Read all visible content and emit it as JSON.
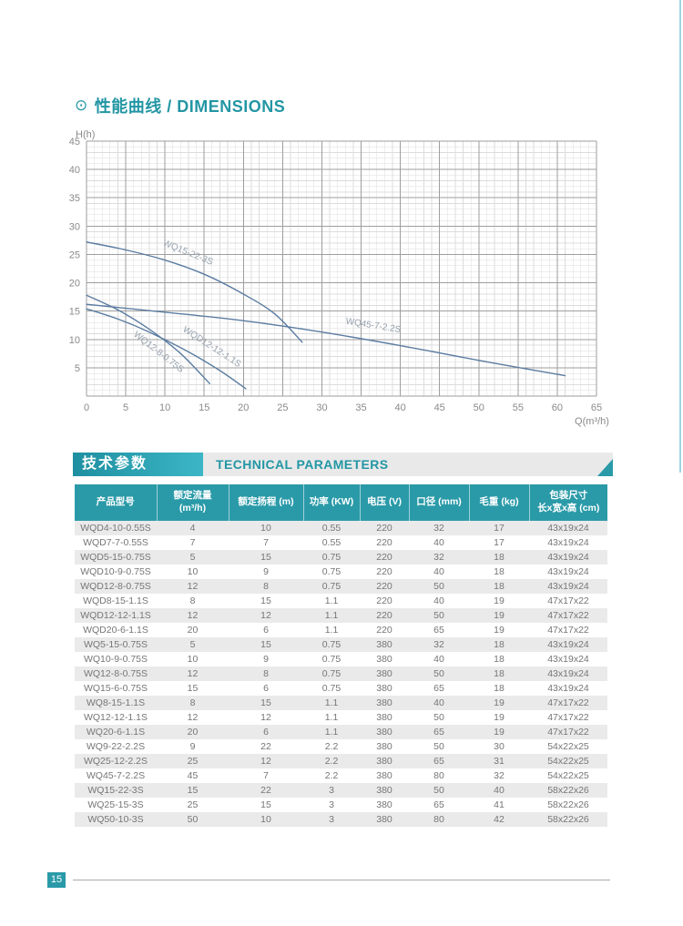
{
  "colors": {
    "accent_teal": "#2a9aa8",
    "teal_gradient_start": "#1e8fa0",
    "teal_gradient_end": "#3cb6c6",
    "curve": "#5b7ca1",
    "curve_label": "#96a1ad",
    "grid_major": "#9e9e9e",
    "grid_minor": "#dcdcdc",
    "tick_text": "#8a8a8a",
    "row_stripe": "#eaeaea",
    "edge_line": "#9fd3e3"
  },
  "dimensions": {
    "icon": "⊙",
    "title": "性能曲线 / DIMENSIONS"
  },
  "chart_data": {
    "type": "line",
    "title": "性能曲线 / DIMENSIONS",
    "xlabel": "Q(m³/h)",
    "ylabel": "H(h)",
    "xlim": [
      0,
      65
    ],
    "ylim": [
      0,
      45
    ],
    "x_ticks": [
      0,
      5,
      10,
      15,
      20,
      25,
      30,
      35,
      40,
      45,
      50,
      55,
      60,
      65
    ],
    "y_ticks": [
      5,
      10,
      15,
      20,
      25,
      30,
      35,
      40,
      45
    ],
    "grid": "major+minor",
    "legend_position": "labels-on-curves",
    "series": [
      {
        "name": "WQ15-22-3S",
        "points": [
          [
            0,
            27.2
          ],
          [
            5,
            25.8
          ],
          [
            10,
            24.0
          ],
          [
            15,
            21.5
          ],
          [
            20,
            18.0
          ],
          [
            24,
            14.5
          ],
          [
            27.5,
            9.5
          ]
        ],
        "label_pos": [
          12.8,
          24.9
        ],
        "label_angle": 22
      },
      {
        "name": "WQ12-8-0.75S",
        "points": [
          [
            0,
            17.8
          ],
          [
            4,
            15.2
          ],
          [
            8,
            11.8
          ],
          [
            12,
            7.5
          ],
          [
            15.7,
            2.2
          ]
        ],
        "label_pos": [
          9.0,
          7.4
        ],
        "label_angle": 38
      },
      {
        "name": "WQD12-12-1.1S",
        "points": [
          [
            0,
            15.4
          ],
          [
            4,
            13.6
          ],
          [
            8,
            11.3
          ],
          [
            13,
            7.8
          ],
          [
            17,
            4.5
          ],
          [
            20.3,
            1.3
          ]
        ],
        "label_pos": [
          15.8,
          8.3
        ],
        "label_angle": 33
      },
      {
        "name": "WQ45-7-2.2S",
        "points": [
          [
            0,
            16.2
          ],
          [
            10,
            14.8
          ],
          [
            20,
            13.3
          ],
          [
            30,
            11.3
          ],
          [
            40,
            8.9
          ],
          [
            50,
            6.3
          ],
          [
            61,
            3.6
          ]
        ],
        "label_pos": [
          36.5,
          12.0
        ],
        "label_angle": 9
      }
    ]
  },
  "technical": {
    "title_cn": "技术参数",
    "title_en": "TECHNICAL PARAMETERS"
  },
  "table": {
    "columns": [
      "产品型号",
      "额定流量\n(m³/h)",
      "额定扬程 (m)",
      "功率 (KW)",
      "电压 (V)",
      "口径 (mm)",
      "毛重 (kg)",
      "包装尺寸\n长x宽x高 (cm)"
    ],
    "rows": [
      [
        "WQD4-10-0.55S",
        "4",
        "10",
        "0.55",
        "220",
        "32",
        "17",
        "43x19x24"
      ],
      [
        "WQD7-7-0.55S",
        "7",
        "7",
        "0.55",
        "220",
        "40",
        "17",
        "43x19x24"
      ],
      [
        "WQD5-15-0.75S",
        "5",
        "15",
        "0.75",
        "220",
        "32",
        "18",
        "43x19x24"
      ],
      [
        "WQD10-9-0.75S",
        "10",
        "9",
        "0.75",
        "220",
        "40",
        "18",
        "43x19x24"
      ],
      [
        "WQD12-8-0.75S",
        "12",
        "8",
        "0.75",
        "220",
        "50",
        "18",
        "43x19x24"
      ],
      [
        "WQD8-15-1.1S",
        "8",
        "15",
        "1.1",
        "220",
        "40",
        "19",
        "47x17x22"
      ],
      [
        "WQD12-12-1.1S",
        "12",
        "12",
        "1.1",
        "220",
        "50",
        "19",
        "47x17x22"
      ],
      [
        "WQD20-6-1.1S",
        "20",
        "6",
        "1.1",
        "220",
        "65",
        "19",
        "47x17x22"
      ],
      [
        "WQ5-15-0.75S",
        "5",
        "15",
        "0.75",
        "380",
        "32",
        "18",
        "43x19x24"
      ],
      [
        "WQ10-9-0.75S",
        "10",
        "9",
        "0.75",
        "380",
        "40",
        "18",
        "43x19x24"
      ],
      [
        "WQ12-8-0.75S",
        "12",
        "8",
        "0.75",
        "380",
        "50",
        "18",
        "43x19x24"
      ],
      [
        "WQ15-6-0.75S",
        "15",
        "6",
        "0.75",
        "380",
        "65",
        "18",
        "43x19x24"
      ],
      [
        "WQ8-15-1.1S",
        "8",
        "15",
        "1.1",
        "380",
        "40",
        "19",
        "47x17x22"
      ],
      [
        "WQ12-12-1.1S",
        "12",
        "12",
        "1.1",
        "380",
        "50",
        "19",
        "47x17x22"
      ],
      [
        "WQ20-6-1.1S",
        "20",
        "6",
        "1.1",
        "380",
        "65",
        "19",
        "47x17x22"
      ],
      [
        "WQ9-22-2.2S",
        "9",
        "22",
        "2.2",
        "380",
        "50",
        "30",
        "54x22x25"
      ],
      [
        "WQ25-12-2.2S",
        "25",
        "12",
        "2.2",
        "380",
        "65",
        "31",
        "54x22x25"
      ],
      [
        "WQ45-7-2.2S",
        "45",
        "7",
        "2.2",
        "380",
        "80",
        "32",
        "54x22x25"
      ],
      [
        "WQ15-22-3S",
        "15",
        "22",
        "3",
        "380",
        "50",
        "40",
        "58x22x26"
      ],
      [
        "WQ25-15-3S",
        "25",
        "15",
        "3",
        "380",
        "65",
        "41",
        "58x22x26"
      ],
      [
        "WQ50-10-3S",
        "50",
        "10",
        "3",
        "380",
        "80",
        "42",
        "58x22x26"
      ]
    ]
  },
  "footer": {
    "page_number": "15"
  }
}
